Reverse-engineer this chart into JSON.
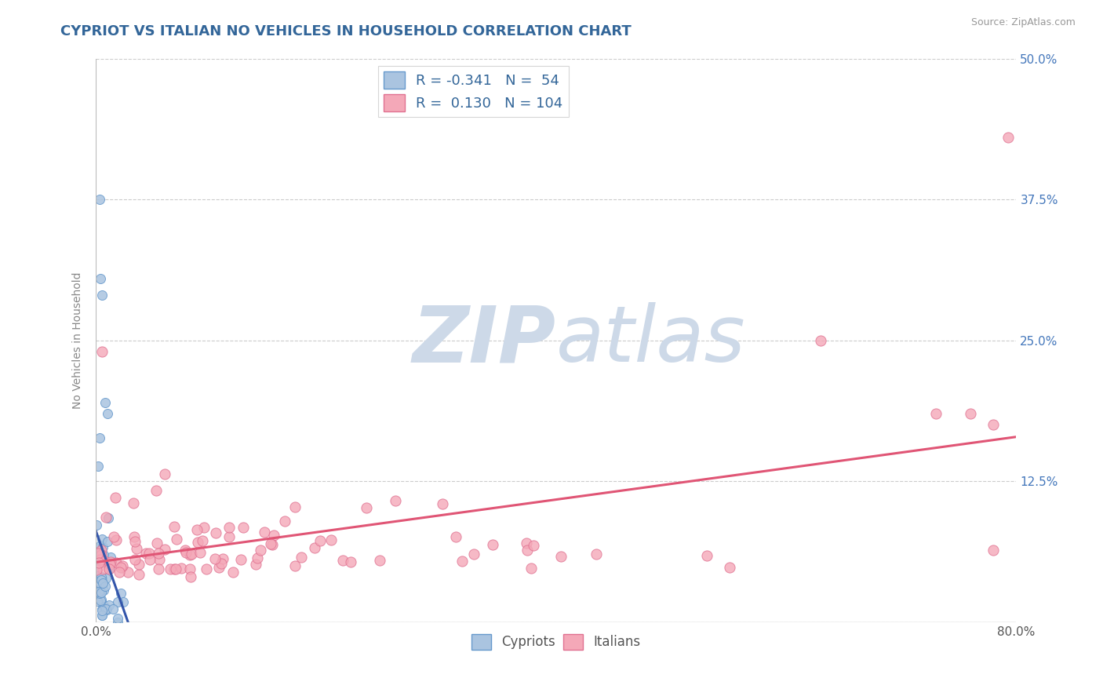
{
  "title": "CYPRIOT VS ITALIAN NO VEHICLES IN HOUSEHOLD CORRELATION CHART",
  "source_text": "Source: ZipAtlas.com",
  "ylabel": "No Vehicles in Household",
  "xlim": [
    0.0,
    0.8
  ],
  "ylim": [
    0.0,
    0.5
  ],
  "xticks": [
    0.0,
    0.1,
    0.2,
    0.3,
    0.4,
    0.5,
    0.6,
    0.7,
    0.8
  ],
  "yticks": [
    0.0,
    0.125,
    0.25,
    0.375,
    0.5
  ],
  "legend_R1": "-0.341",
  "legend_N1": "54",
  "legend_R2": "0.130",
  "legend_N2": "104",
  "cypriot_color": "#aac4e0",
  "italian_color": "#f4a8b8",
  "cypriot_edge": "#6699cc",
  "italian_edge": "#e07090",
  "trend_cypriot_color": "#3355aa",
  "trend_italian_color": "#e05575",
  "watermark_color": "#cdd9e8",
  "title_color": "#336699",
  "axis_label_color": "#888888",
  "right_tick_color": "#4477bb",
  "background_color": "#ffffff",
  "grid_color": "#cccccc"
}
